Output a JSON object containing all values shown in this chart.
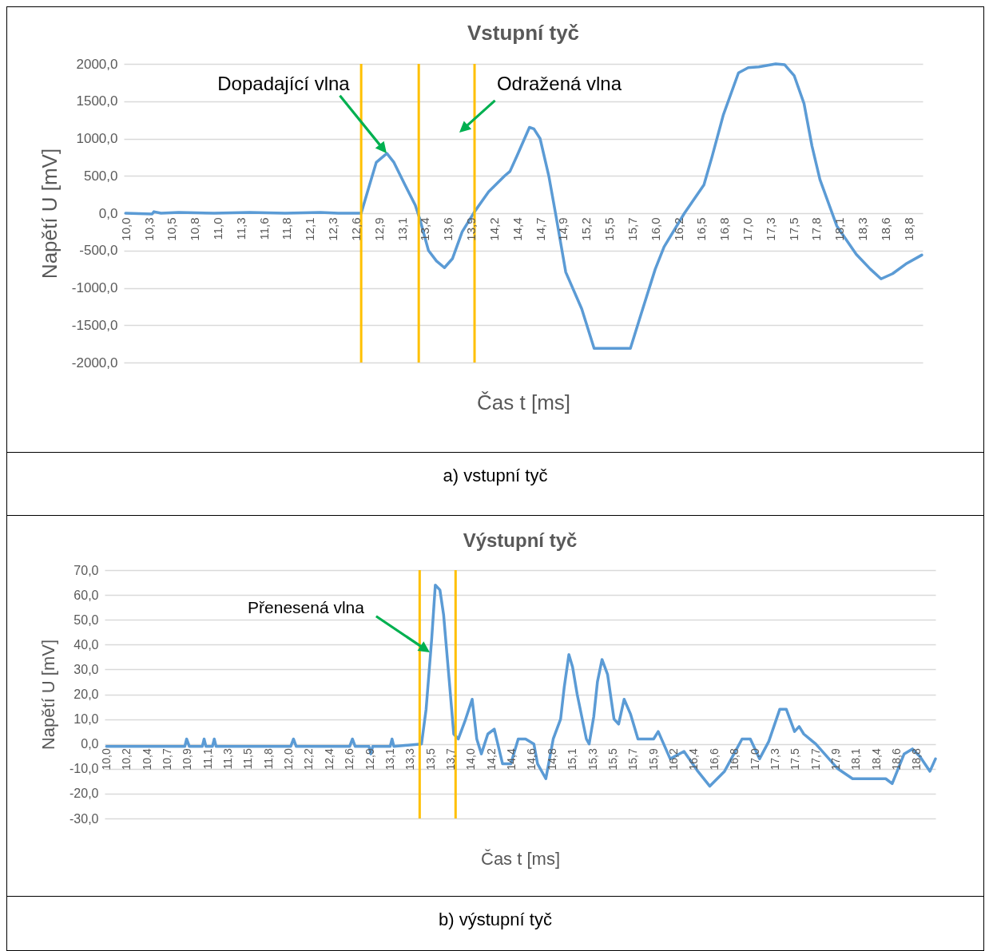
{
  "chart_data": [
    {
      "type": "line",
      "title": "Vstupní tyč",
      "xlabel": "Čas t [ms]",
      "ylabel": "Napětí U [mV]",
      "xlim": [
        9.98,
        19.0
      ],
      "ylim": [
        -2000,
        2000
      ],
      "xticks": [
        {
          "value": 10.0,
          "label": "10,0"
        },
        {
          "value": 10.26,
          "label": "10,3"
        },
        {
          "value": 10.52,
          "label": "10,5"
        },
        {
          "value": 10.78,
          "label": "10,8"
        },
        {
          "value": 11.04,
          "label": "11,0"
        },
        {
          "value": 11.3,
          "label": "11,3"
        },
        {
          "value": 11.56,
          "label": "11,6"
        },
        {
          "value": 11.82,
          "label": "11,8"
        },
        {
          "value": 12.08,
          "label": "12,1"
        },
        {
          "value": 12.34,
          "label": "12,3"
        },
        {
          "value": 12.6,
          "label": "12,6"
        },
        {
          "value": 12.86,
          "label": "12,9"
        },
        {
          "value": 13.12,
          "label": "13,1"
        },
        {
          "value": 13.38,
          "label": "13,4"
        },
        {
          "value": 13.64,
          "label": "13,6"
        },
        {
          "value": 13.9,
          "label": "13,9"
        },
        {
          "value": 14.16,
          "label": "14,2"
        },
        {
          "value": 14.42,
          "label": "14,4"
        },
        {
          "value": 14.68,
          "label": "14,7"
        },
        {
          "value": 14.94,
          "label": "14,9"
        },
        {
          "value": 15.2,
          "label": "15,2"
        },
        {
          "value": 15.46,
          "label": "15,5"
        },
        {
          "value": 15.72,
          "label": "15,7"
        },
        {
          "value": 15.98,
          "label": "16,0"
        },
        {
          "value": 16.24,
          "label": "16,2"
        },
        {
          "value": 16.5,
          "label": "16,5"
        },
        {
          "value": 16.76,
          "label": "16,8"
        },
        {
          "value": 17.02,
          "label": "17,0"
        },
        {
          "value": 17.28,
          "label": "17,3"
        },
        {
          "value": 17.54,
          "label": "17,5"
        },
        {
          "value": 17.8,
          "label": "17,8"
        },
        {
          "value": 18.06,
          "label": "18,1"
        },
        {
          "value": 18.32,
          "label": "18,3"
        },
        {
          "value": 18.58,
          "label": "18,6"
        },
        {
          "value": 18.84,
          "label": "18,8"
        }
      ],
      "yticks": [
        {
          "value": -2000,
          "label": "-2000,0"
        },
        {
          "value": -1500,
          "label": "-1500,0"
        },
        {
          "value": -1000,
          "label": "-1000,0"
        },
        {
          "value": -500,
          "label": "-500,0"
        },
        {
          "value": 0,
          "label": "0,0"
        },
        {
          "value": 500,
          "label": "500,0"
        },
        {
          "value": 1000,
          "label": "1000,0"
        },
        {
          "value": 1500,
          "label": "1500,0"
        },
        {
          "value": 2000,
          "label": "2000,0"
        }
      ],
      "grid": "y",
      "series": [
        {
          "color": "#5b9bd5",
          "x": [
            10.0,
            10.3,
            10.32,
            10.4,
            10.6,
            11.0,
            11.4,
            11.8,
            12.2,
            12.4,
            12.66,
            12.75,
            12.83,
            12.95,
            13.03,
            13.15,
            13.27,
            13.32,
            13.42,
            13.51,
            13.6,
            13.69,
            13.8,
            13.94,
            14.1,
            14.28,
            14.34,
            14.42,
            14.56,
            14.61,
            14.68,
            14.78,
            14.86,
            14.97,
            15.15,
            15.29,
            15.7,
            15.81,
            15.98,
            16.08,
            16.31,
            16.53,
            16.62,
            16.75,
            16.92,
            17.03,
            17.15,
            17.34,
            17.44,
            17.55,
            17.66,
            17.75,
            17.84,
            18.03,
            18.25,
            18.41,
            18.53,
            18.66,
            18.81,
            18.99
          ],
          "values": [
            0,
            -10,
            20,
            0,
            10,
            0,
            10,
            0,
            10,
            0,
            0,
            360,
            680,
            800,
            680,
            390,
            110,
            -70,
            -500,
            -640,
            -730,
            -610,
            -250,
            20,
            290,
            500,
            560,
            770,
            1150,
            1130,
            1000,
            490,
            -40,
            -790,
            -1280,
            -1810,
            -1810,
            -1390,
            -750,
            -450,
            0,
            380,
            750,
            1320,
            1880,
            1950,
            1960,
            2000,
            1990,
            1840,
            1470,
            900,
            450,
            -170,
            -550,
            -750,
            -880,
            -810,
            -680,
            -560
          ]
        }
      ],
      "ref_lines": [
        {
          "axis": "x",
          "value": 12.66,
          "color": "#ffc000"
        },
        {
          "axis": "x",
          "value": 13.31,
          "color": "#ffc000"
        },
        {
          "axis": "x",
          "value": 13.94,
          "color": "#ffc000"
        }
      ],
      "annotations": [
        "Dopadající vlna",
        "Odražená vlna",
        "a) vstupní tyč"
      ]
    },
    {
      "type": "line",
      "title": "Výstupní tyč",
      "xlabel": "Čas t [ms]",
      "ylabel": "Napětí U [mV]",
      "xlim": [
        9.98,
        19.0
      ],
      "ylim": [
        -30,
        70
      ],
      "xticks": [
        {
          "value": 10.0,
          "label": "10,0"
        },
        {
          "value": 10.22,
          "label": "10,2"
        },
        {
          "value": 10.44,
          "label": "10,4"
        },
        {
          "value": 10.66,
          "label": "10,7"
        },
        {
          "value": 10.88,
          "label": "10,9"
        },
        {
          "value": 11.1,
          "label": "11,1"
        },
        {
          "value": 11.32,
          "label": "11,3"
        },
        {
          "value": 11.54,
          "label": "11,5"
        },
        {
          "value": 11.76,
          "label": "11,8"
        },
        {
          "value": 11.98,
          "label": "12,0"
        },
        {
          "value": 12.2,
          "label": "12,2"
        },
        {
          "value": 12.42,
          "label": "12,4"
        },
        {
          "value": 12.64,
          "label": "12,6"
        },
        {
          "value": 12.86,
          "label": "12,9"
        },
        {
          "value": 13.08,
          "label": "13,1"
        },
        {
          "value": 13.3,
          "label": "13,3"
        },
        {
          "value": 13.52,
          "label": "13,5"
        },
        {
          "value": 13.74,
          "label": "13,7"
        },
        {
          "value": 13.96,
          "label": "14,0"
        },
        {
          "value": 14.18,
          "label": "14,2"
        },
        {
          "value": 14.4,
          "label": "14,4"
        },
        {
          "value": 14.62,
          "label": "14,6"
        },
        {
          "value": 14.84,
          "label": "14,8"
        },
        {
          "value": 15.06,
          "label": "15,1"
        },
        {
          "value": 15.28,
          "label": "15,3"
        },
        {
          "value": 15.5,
          "label": "15,5"
        },
        {
          "value": 15.72,
          "label": "15,7"
        },
        {
          "value": 15.94,
          "label": "15,9"
        },
        {
          "value": 16.16,
          "label": "16,2"
        },
        {
          "value": 16.38,
          "label": "16,4"
        },
        {
          "value": 16.6,
          "label": "16,6"
        },
        {
          "value": 16.82,
          "label": "16,8"
        },
        {
          "value": 17.04,
          "label": "17,0"
        },
        {
          "value": 17.26,
          "label": "17,3"
        },
        {
          "value": 17.48,
          "label": "17,5"
        },
        {
          "value": 17.7,
          "label": "17,7"
        },
        {
          "value": 17.92,
          "label": "17,9"
        },
        {
          "value": 18.14,
          "label": "18,1"
        },
        {
          "value": 18.36,
          "label": "18,4"
        },
        {
          "value": 18.58,
          "label": "18,6"
        },
        {
          "value": 18.8,
          "label": "18,8"
        }
      ],
      "yticks": [
        {
          "value": -30,
          "label": "-30,0"
        },
        {
          "value": -20,
          "label": "-20,0"
        },
        {
          "value": -10,
          "label": "-10,0"
        },
        {
          "value": 0,
          "label": "0,0"
        },
        {
          "value": 10,
          "label": "10,0"
        },
        {
          "value": 20,
          "label": "20,0"
        },
        {
          "value": 30,
          "label": "30,0"
        },
        {
          "value": 40,
          "label": "40,0"
        },
        {
          "value": 50,
          "label": "50,0"
        },
        {
          "value": 60,
          "label": "60,0"
        },
        {
          "value": 70,
          "label": "70,0"
        }
      ],
      "grid": "y",
      "series": [
        {
          "color": "#5b9bd5",
          "x": [
            10.0,
            10.5,
            10.85,
            10.87,
            10.9,
            11.04,
            11.06,
            11.08,
            11.15,
            11.17,
            11.19,
            12.0,
            12.03,
            12.06,
            12.64,
            12.67,
            12.7,
            12.85,
            12.87,
            12.89,
            13.08,
            13.1,
            13.12,
            13.42,
            13.47,
            13.53,
            13.57,
            13.62,
            13.66,
            13.72,
            13.77,
            13.82,
            13.89,
            13.97,
            14.02,
            14.07,
            14.14,
            14.21,
            14.3,
            14.39,
            14.47,
            14.55,
            14.64,
            14.68,
            14.77,
            14.85,
            14.93,
            14.97,
            15.02,
            15.06,
            15.11,
            15.21,
            15.24,
            15.29,
            15.33,
            15.38,
            15.44,
            15.51,
            15.56,
            15.62,
            15.69,
            15.77,
            15.94,
            15.99,
            16.12,
            16.27,
            16.42,
            16.55,
            16.71,
            16.9,
            16.99,
            17.09,
            17.19,
            17.31,
            17.38,
            17.47,
            17.52,
            17.57,
            17.7,
            17.94,
            18.1,
            18.27,
            18.46,
            18.53,
            18.66,
            18.75,
            18.83,
            18.94,
            19.0
          ],
          "values": [
            -1,
            -1,
            -1,
            2,
            -1,
            -1,
            2,
            -1,
            -1,
            2,
            -1,
            -1,
            2,
            -1,
            -1,
            2,
            -1,
            -1,
            -4,
            -1,
            -1,
            2,
            -1,
            0,
            14,
            42,
            64,
            62,
            52,
            26,
            4,
            2,
            9,
            18,
            2,
            -4,
            4,
            6,
            -8,
            -8,
            2,
            2,
            0,
            -8,
            -14,
            2,
            10,
            23,
            36,
            31,
            20,
            2,
            0,
            11,
            25,
            34,
            28,
            10,
            8,
            18,
            12,
            2,
            2,
            5,
            -6,
            -3,
            -11,
            -17,
            -11,
            2,
            2,
            -6,
            1,
            14,
            14,
            5,
            7,
            4,
            0,
            -10,
            -14,
            -14,
            -14,
            -16,
            -4,
            -2,
            -5,
            -11,
            -6
          ]
        }
      ],
      "ref_lines": [
        {
          "axis": "x",
          "value": 13.4,
          "color": "#ffc000"
        },
        {
          "axis": "x",
          "value": 13.79,
          "color": "#ffc000"
        }
      ],
      "annotations": [
        "Přenesená vlna",
        "b) výstupní tyč"
      ]
    }
  ]
}
